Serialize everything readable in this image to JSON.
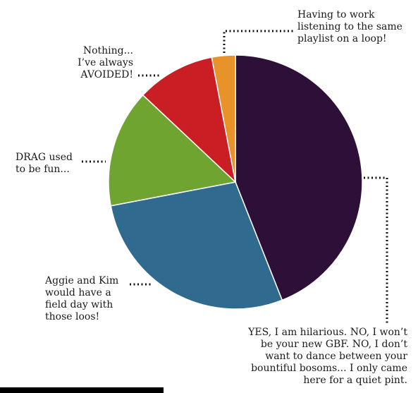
{
  "chart_data": {
    "type": "pie",
    "title": "",
    "slices": [
      {
        "label": "YES, I am hilarious. NO, I won’t\nbe your new GBF. NO, I don’t\nwant to dance between your\nbountiful bosoms... I only came\nhere for a quiet pint.",
        "value": 44,
        "color": "#2e0f38"
      },
      {
        "label": "Aggie and Kim\nwould have a\nfield day with\nthose loos!",
        "value": 28,
        "color": "#306b8f"
      },
      {
        "label": "DRAG used\nto be fun...",
        "value": 15,
        "color": "#6ea42f"
      },
      {
        "label": "Nothing...\nI’ve always\nAVOIDED!",
        "value": 10,
        "color": "#c91f24"
      },
      {
        "label": "Having to work\nlistening to the same\nplaylist on a loop!",
        "value": 3,
        "color": "#e8922a"
      }
    ]
  }
}
